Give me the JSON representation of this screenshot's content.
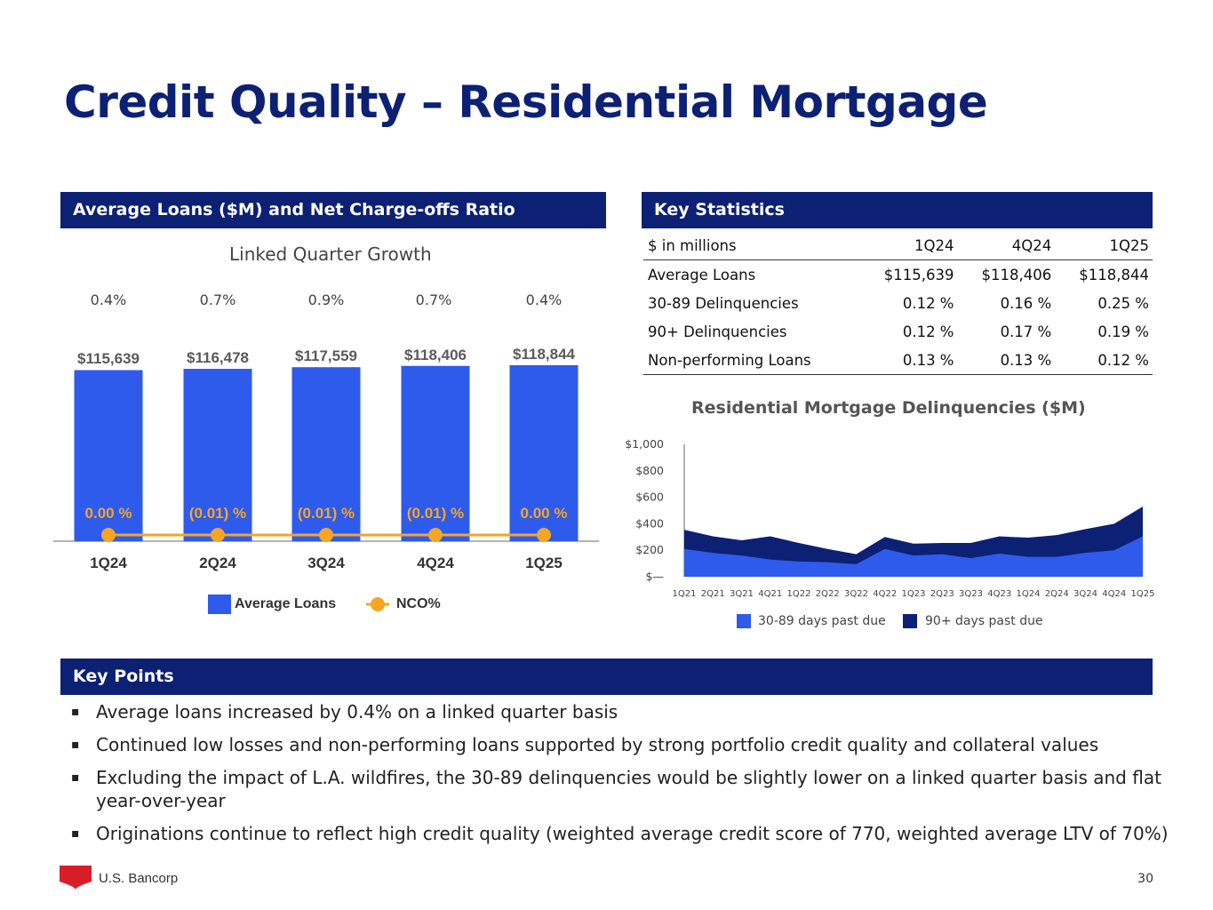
{
  "title": "Credit Quality – Residential Mortgage",
  "left_panel": {
    "header": "Average Loans ($M) and Net Charge-offs Ratio",
    "subtitle": "Linked Quarter Growth",
    "growth": [
      "0.4%",
      "0.7%",
      "0.9%",
      "0.7%",
      "0.4%"
    ],
    "legend": {
      "bars": "Average Loans",
      "line": "NCO%"
    }
  },
  "chart_data": [
    {
      "type": "bar",
      "title": "Average Loans ($M) and Net Charge-offs Ratio",
      "categories": [
        "1Q24",
        "2Q24",
        "3Q24",
        "4Q24",
        "1Q25"
      ],
      "series": [
        {
          "name": "Average Loans",
          "values": [
            115639,
            116478,
            117559,
            118406,
            118844
          ],
          "labels": [
            "$115,639",
            "$116,478",
            "$117,559",
            "$118,406",
            "$118,844"
          ]
        },
        {
          "name": "NCO%",
          "type": "line",
          "values": [
            0.0,
            -0.01,
            -0.01,
            -0.01,
            0.0
          ],
          "labels": [
            "0.00 %",
            "(0.01) %",
            "(0.01) %",
            "(0.01) %",
            "0.00 %"
          ]
        }
      ],
      "ylim": [
        0,
        120000
      ]
    },
    {
      "type": "area",
      "title": "Residential Mortgage Delinquencies ($M)",
      "x": [
        "1Q21",
        "2Q21",
        "3Q21",
        "4Q21",
        "1Q22",
        "2Q22",
        "3Q22",
        "4Q22",
        "1Q23",
        "2Q23",
        "3Q23",
        "4Q23",
        "1Q24",
        "2Q24",
        "3Q24",
        "4Q24",
        "1Q25"
      ],
      "series": [
        {
          "name": "30-89 days past due",
          "values": [
            210,
            180,
            160,
            130,
            115,
            110,
            95,
            210,
            160,
            170,
            140,
            175,
            150,
            150,
            180,
            200,
            305
          ]
        },
        {
          "name": "90+ days past due",
          "values": [
            145,
            125,
            115,
            175,
            140,
            100,
            75,
            90,
            90,
            85,
            115,
            130,
            145,
            165,
            180,
            200,
            225
          ]
        }
      ],
      "yticks": [
        "$—",
        "$200",
        "$400",
        "$600",
        "$800",
        "$1,000"
      ],
      "ylim": [
        0,
        1000
      ],
      "stacked": true
    }
  ],
  "colors": {
    "navy": "#0c2074",
    "bar": "#2e5bec",
    "nco": "#f5a623",
    "dq_light": "#2e5bec",
    "dq_dark": "#0c2074"
  },
  "key_stats": {
    "header": "Key Statistics",
    "columns": [
      "$ in millions",
      "1Q24",
      "4Q24",
      "1Q25"
    ],
    "rows": [
      [
        "Average Loans",
        "$115,639",
        "$118,406",
        "$118,844"
      ],
      [
        "30-89 Delinquencies",
        "0.12 %",
        "0.16 %",
        "0.25 %"
      ],
      [
        "90+ Delinquencies",
        "0.12 %",
        "0.17 %",
        "0.19 %"
      ],
      [
        "Non-performing Loans",
        "0.13 %",
        "0.13 %",
        "0.12 %"
      ]
    ]
  },
  "delinquency_chart": {
    "title": "Residential Mortgage Delinquencies ($M)",
    "legend": [
      "30-89 days past due",
      "90+ days past due"
    ]
  },
  "key_points": {
    "header": "Key Points",
    "items": [
      "Average loans increased by 0.4% on a linked quarter basis",
      "Continued low losses and non-performing loans supported by strong portfolio credit quality and collateral values",
      "Excluding the impact of L.A. wildfires, the 30-89 delinquencies would be slightly lower on a linked quarter basis and flat year-over-year",
      "Originations continue to reflect high credit quality (weighted average credit score of 770, weighted average LTV of 70%)"
    ]
  },
  "footer": {
    "brand": "U.S. Bancorp",
    "page_number": "30"
  }
}
